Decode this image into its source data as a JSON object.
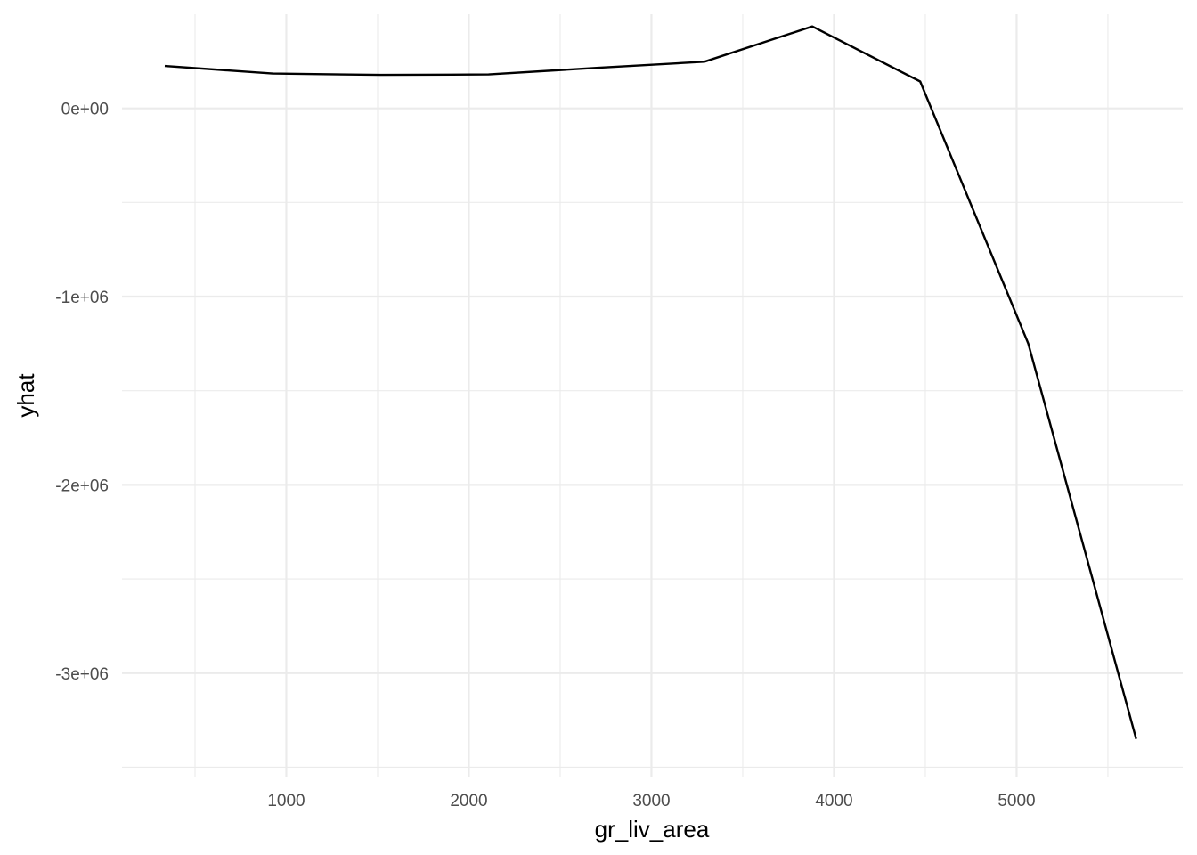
{
  "chart_data": {
    "type": "line",
    "title": "",
    "xlabel": "gr_liv_area",
    "ylabel": "yhat",
    "xlim": [
      100,
      5910
    ],
    "ylim": [
      -3550000,
      500000
    ],
    "x_ticks": [
      1000,
      2000,
      3000,
      4000,
      5000
    ],
    "x_tick_labels": [
      "1000",
      "2000",
      "3000",
      "4000",
      "5000"
    ],
    "x_minor_ticks": [
      500,
      1500,
      2500,
      3500,
      4500,
      5500
    ],
    "y_ticks": [
      0,
      -1000000,
      -2000000,
      -3000000
    ],
    "y_tick_labels": [
      "0e+00",
      "-1e+06",
      "-2e+06",
      "-3e+06"
    ],
    "y_minor_ticks": [
      -500000,
      -1500000,
      -2500000,
      -3500000
    ],
    "grid": true,
    "legend": "none",
    "line_color": "#000000",
    "series": [
      {
        "x": [
          334,
          925,
          1517,
          2108,
          2699,
          3290,
          3881,
          4472,
          5064,
          5655
        ],
        "y": [
          225000,
          185000,
          178000,
          180000,
          215000,
          248000,
          435000,
          143000,
          -1250000,
          -3350000
        ]
      }
    ]
  }
}
